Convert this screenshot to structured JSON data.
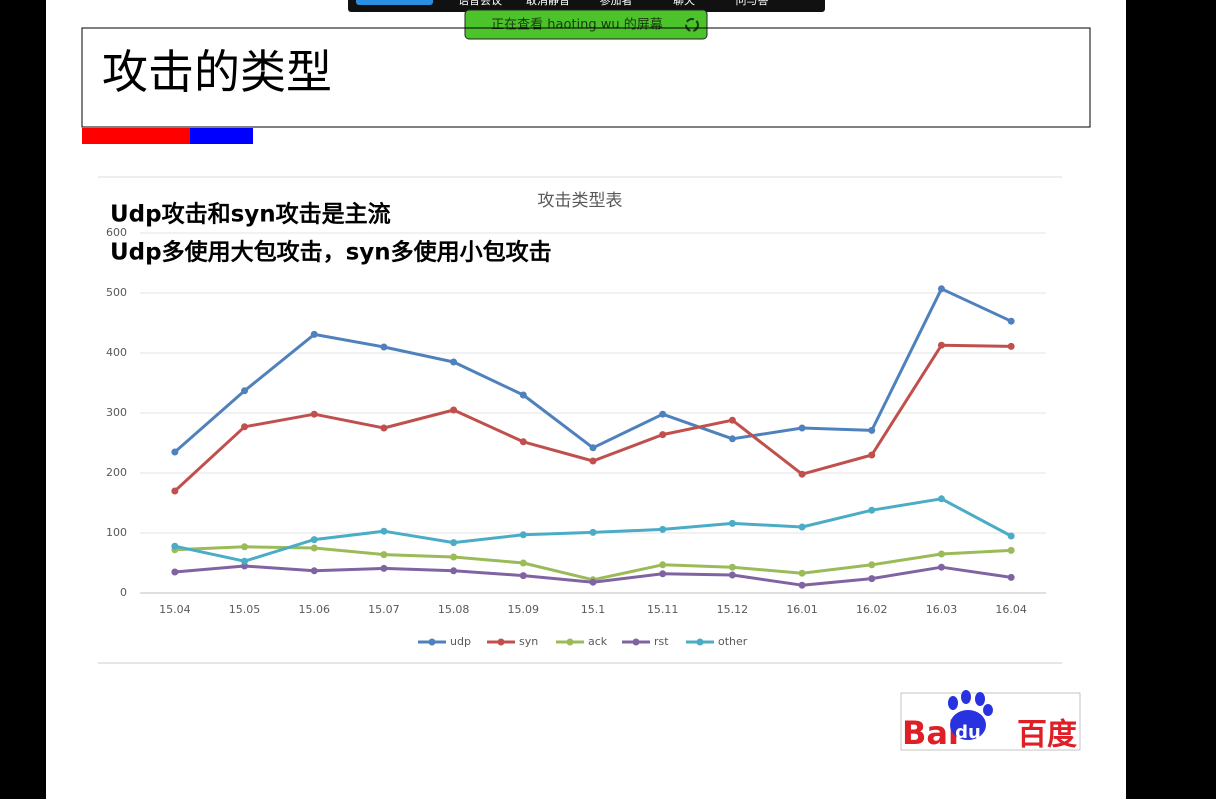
{
  "toolbar": {
    "items": [
      "语音会议",
      "取消静音",
      "参加者",
      "聊天",
      "问与答"
    ]
  },
  "banner": {
    "text": "正在查看 haoting wu 的屏幕"
  },
  "slide": {
    "title": "攻击的类型",
    "notes": [
      "Udp攻击和syn攻击是主流",
      "Udp多使用大包攻击，syn多使用小包攻击"
    ],
    "logo": {
      "left": "Bai",
      "paw": "du",
      "right": "百度"
    }
  },
  "chart_data": {
    "type": "line",
    "title": "攻击类型表",
    "categories": [
      "15.04",
      "15.05",
      "15.06",
      "15.07",
      "15.08",
      "15.09",
      "15.1",
      "15.11",
      "15.12",
      "16.01",
      "16.02",
      "16.03",
      "16.04"
    ],
    "series": [
      {
        "name": "udp",
        "color": "#4f81bd",
        "values": [
          235,
          337,
          431,
          410,
          385,
          330,
          242,
          298,
          257,
          275,
          271,
          507,
          453
        ]
      },
      {
        "name": "syn",
        "color": "#c0504d",
        "values": [
          170,
          277,
          298,
          275,
          305,
          252,
          220,
          264,
          288,
          198,
          230,
          413,
          411
        ]
      },
      {
        "name": "ack",
        "color": "#9bbb59",
        "values": [
          72,
          77,
          75,
          64,
          60,
          50,
          22,
          47,
          43,
          33,
          47,
          65,
          71
        ]
      },
      {
        "name": "rst",
        "color": "#8064a2",
        "values": [
          35,
          45,
          37,
          41,
          37,
          29,
          18,
          32,
          30,
          13,
          24,
          43,
          26
        ]
      },
      {
        "name": "other",
        "color": "#4bacc6",
        "values": [
          78,
          53,
          89,
          103,
          84,
          97,
          101,
          106,
          116,
          110,
          138,
          157,
          95
        ]
      }
    ],
    "ylim": [
      0,
      600
    ],
    "yticks": [
      0,
      100,
      200,
      300,
      400,
      500,
      600
    ],
    "grid": true,
    "legend": "bottom"
  }
}
